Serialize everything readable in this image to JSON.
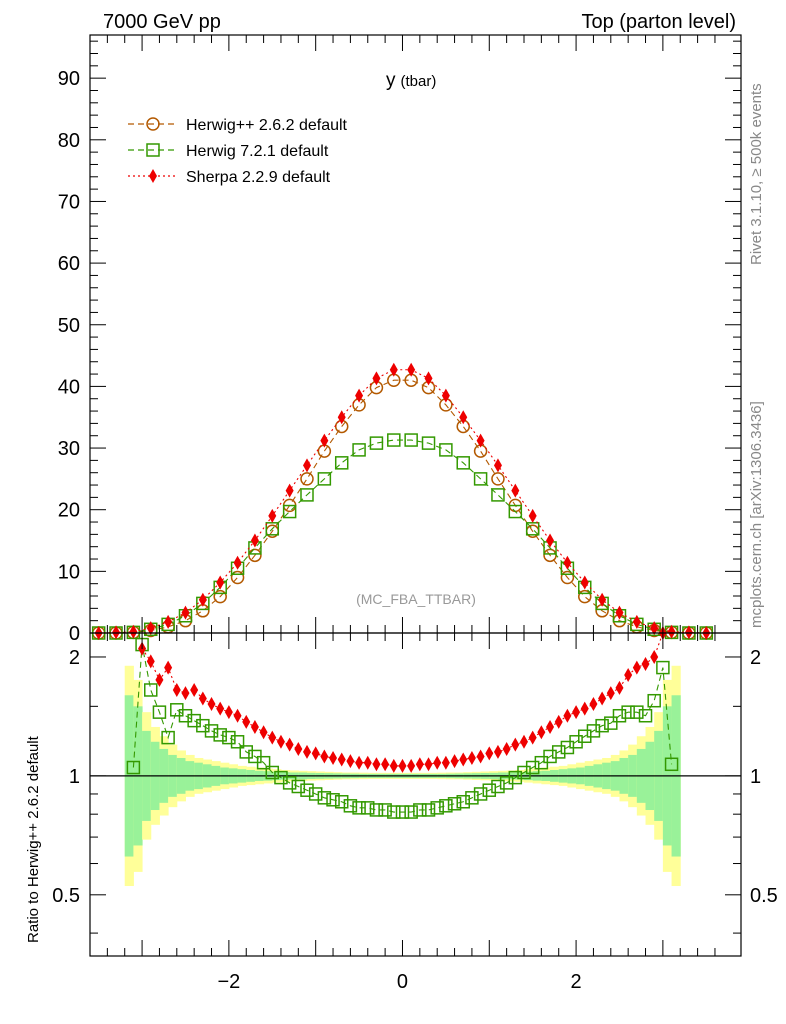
{
  "header": {
    "left": "7000 GeV pp",
    "right": "Top (parton level)"
  },
  "side_labels": {
    "rivet": "Rivet 3.1.10, ≥ 500k events",
    "mcplots": "mcplots.cern.ch [arXiv:1306.3436]"
  },
  "plot_title_main": "y",
  "plot_title_sub": "(tbar)",
  "analysis_label": "(MC_FBA_TTBAR)",
  "ratio_ylabel": "Ratio to Herwig++ 2.6.2 default",
  "colors": {
    "herwigpp": "#b35900",
    "herwig7": "#339900",
    "sherpa": "#ee0000",
    "band_inner": "#99f299",
    "band_outer": "#ffff99"
  },
  "chart_data": [
    {
      "type": "line",
      "panel": "main",
      "xlim": [
        -3.6,
        3.9
      ],
      "ylim": [
        0,
        97
      ],
      "yticks": [
        0,
        10,
        20,
        30,
        40,
        50,
        60,
        70,
        80,
        90
      ],
      "grid": false,
      "legend_position": "top-left",
      "series": [
        {
          "name": "Herwig++ 2.6.2 default",
          "marker": "open-circle",
          "line": "dashed",
          "x": [
            -3.5,
            -3.3,
            -3.1,
            -2.9,
            -2.7,
            -2.5,
            -2.3,
            -2.1,
            -1.9,
            -1.7,
            -1.5,
            -1.3,
            -1.1,
            -0.9,
            -0.7,
            -0.5,
            -0.3,
            -0.1,
            0.1,
            0.3,
            0.5,
            0.7,
            0.9,
            1.1,
            1.3,
            1.5,
            1.7,
            1.9,
            2.1,
            2.3,
            2.5,
            2.7,
            2.9,
            3.1,
            3.3,
            3.5
          ],
          "y": [
            0,
            0,
            0.1,
            0.4,
            1.0,
            2.0,
            3.6,
            5.9,
            9.0,
            12.6,
            16.5,
            20.7,
            25.0,
            29.5,
            33.5,
            37.0,
            39.8,
            41.0,
            41.0,
            39.8,
            37.0,
            33.5,
            29.5,
            25.0,
            20.7,
            16.5,
            12.6,
            9.0,
            5.9,
            3.6,
            2.0,
            1.0,
            0.4,
            0.1,
            0,
            0
          ]
        },
        {
          "name": "Herwig 7.2.1 default",
          "marker": "open-square",
          "line": "dashed",
          "x": [
            -3.5,
            -3.3,
            -3.1,
            -2.9,
            -2.7,
            -2.5,
            -2.3,
            -2.1,
            -1.9,
            -1.7,
            -1.5,
            -1.3,
            -1.1,
            -0.9,
            -0.7,
            -0.5,
            -0.3,
            -0.1,
            0.1,
            0.3,
            0.5,
            0.7,
            0.9,
            1.1,
            1.3,
            1.5,
            1.7,
            1.9,
            2.1,
            2.3,
            2.5,
            2.7,
            2.9,
            3.1,
            3.3,
            3.5
          ],
          "y": [
            0,
            0,
            0.1,
            0.6,
            1.4,
            2.8,
            4.8,
            7.4,
            10.5,
            13.8,
            16.9,
            19.7,
            22.4,
            25.0,
            27.6,
            29.7,
            30.8,
            31.3,
            31.3,
            30.8,
            29.7,
            27.6,
            25.0,
            22.4,
            19.7,
            16.9,
            13.8,
            10.5,
            7.4,
            4.8,
            2.8,
            1.4,
            0.6,
            0.1,
            0,
            0
          ]
        },
        {
          "name": "Sherpa 2.2.9 default",
          "marker": "filled-diamond",
          "line": "dotted",
          "x": [
            -3.5,
            -3.3,
            -3.1,
            -2.9,
            -2.7,
            -2.5,
            -2.3,
            -2.1,
            -1.9,
            -1.7,
            -1.5,
            -1.3,
            -1.1,
            -0.9,
            -0.7,
            -0.5,
            -0.3,
            -0.1,
            0.1,
            0.3,
            0.5,
            0.7,
            0.9,
            1.1,
            1.3,
            1.5,
            1.7,
            1.9,
            2.1,
            2.3,
            2.5,
            2.7,
            2.9,
            3.1,
            3.3,
            3.5
          ],
          "y": [
            0,
            0.1,
            0.2,
            0.8,
            1.8,
            3.3,
            5.4,
            8.2,
            11.4,
            15.0,
            19.0,
            23.1,
            27.2,
            31.2,
            35.0,
            38.5,
            41.3,
            42.7,
            42.7,
            41.3,
            38.5,
            35.0,
            31.2,
            27.2,
            23.1,
            19.0,
            15.0,
            11.4,
            8.2,
            5.4,
            3.3,
            1.8,
            0.8,
            0.2,
            0.1,
            0
          ]
        }
      ]
    },
    {
      "type": "line",
      "panel": "ratio",
      "xlim": [
        -3.6,
        3.9
      ],
      "ylim": [
        0.35,
        2.3
      ],
      "ylog": true,
      "yticks": [
        0.5,
        1,
        2
      ],
      "xticks": [
        -2,
        0,
        2
      ],
      "series": [
        {
          "name": "Herwig 7.2.1 default",
          "x": [
            -3.1,
            -3.0,
            -2.9,
            -2.8,
            -2.7,
            -2.6,
            -2.5,
            -2.4,
            -2.3,
            -2.2,
            -2.1,
            -2.0,
            -1.9,
            -1.8,
            -1.7,
            -1.6,
            -1.5,
            -1.4,
            -1.3,
            -1.2,
            -1.1,
            -1.0,
            -0.9,
            -0.8,
            -0.7,
            -0.6,
            -0.5,
            -0.4,
            -0.3,
            -0.2,
            -0.1,
            0.0,
            0.1,
            0.2,
            0.3,
            0.4,
            0.5,
            0.6,
            0.7,
            0.8,
            0.9,
            1.0,
            1.1,
            1.2,
            1.3,
            1.4,
            1.5,
            1.6,
            1.7,
            1.8,
            1.9,
            2.0,
            2.1,
            2.2,
            2.3,
            2.4,
            2.5,
            2.6,
            2.7,
            2.8,
            2.9,
            3.0,
            3.1
          ],
          "y": [
            1.05,
            2.15,
            1.65,
            1.45,
            1.25,
            1.47,
            1.42,
            1.38,
            1.34,
            1.3,
            1.27,
            1.25,
            1.22,
            1.15,
            1.12,
            1.08,
            1.02,
            0.99,
            0.96,
            0.94,
            0.92,
            0.9,
            0.88,
            0.87,
            0.86,
            0.84,
            0.83,
            0.83,
            0.82,
            0.82,
            0.81,
            0.81,
            0.81,
            0.82,
            0.82,
            0.83,
            0.84,
            0.85,
            0.86,
            0.88,
            0.9,
            0.92,
            0.94,
            0.96,
            0.99,
            1.02,
            1.05,
            1.08,
            1.12,
            1.15,
            1.18,
            1.22,
            1.26,
            1.3,
            1.34,
            1.36,
            1.42,
            1.45,
            1.45,
            1.42,
            1.55,
            1.88,
            1.07
          ]
        },
        {
          "name": "Sherpa 2.2.9 default",
          "x": [
            -3.0,
            -2.9,
            -2.8,
            -2.7,
            -2.6,
            -2.5,
            -2.4,
            -2.3,
            -2.2,
            -2.1,
            -2.0,
            -1.9,
            -1.8,
            -1.7,
            -1.6,
            -1.5,
            -1.4,
            -1.3,
            -1.2,
            -1.1,
            -1.0,
            -0.9,
            -0.8,
            -0.7,
            -0.6,
            -0.5,
            -0.4,
            -0.3,
            -0.2,
            -0.1,
            0.0,
            0.1,
            0.2,
            0.3,
            0.4,
            0.5,
            0.6,
            0.7,
            0.8,
            0.9,
            1.0,
            1.1,
            1.2,
            1.3,
            1.4,
            1.5,
            1.6,
            1.7,
            1.8,
            1.9,
            2.0,
            2.1,
            2.2,
            2.3,
            2.4,
            2.5,
            2.6,
            2.7,
            2.8,
            2.9,
            3.0
          ],
          "y": [
            2.1,
            1.95,
            1.75,
            1.88,
            1.65,
            1.62,
            1.65,
            1.57,
            1.52,
            1.48,
            1.45,
            1.42,
            1.37,
            1.33,
            1.29,
            1.25,
            1.22,
            1.2,
            1.17,
            1.15,
            1.14,
            1.12,
            1.11,
            1.1,
            1.09,
            1.08,
            1.08,
            1.07,
            1.07,
            1.06,
            1.06,
            1.06,
            1.07,
            1.07,
            1.08,
            1.08,
            1.09,
            1.1,
            1.11,
            1.12,
            1.14,
            1.15,
            1.17,
            1.2,
            1.22,
            1.25,
            1.29,
            1.33,
            1.37,
            1.42,
            1.45,
            1.48,
            1.52,
            1.57,
            1.62,
            1.67,
            1.8,
            1.88,
            1.92,
            2.0,
            2.3
          ]
        }
      ],
      "bands": {
        "x": [
          -3.15,
          -3.05,
          -2.95,
          -2.85,
          -2.75,
          -2.65,
          -2.55,
          -2.45,
          -2.35,
          -2.25,
          -2.15,
          -2.05,
          -1.95,
          -1.85,
          -1.75,
          -1.65,
          -1.55,
          -1.45,
          -1.35,
          -1.25,
          -1.15,
          -1.05,
          -0.95,
          -0.85,
          -0.75,
          -0.65,
          -0.55,
          -0.45,
          -0.35,
          -0.25,
          -0.15,
          -0.05,
          0.05,
          0.15,
          0.25,
          0.35,
          0.45,
          0.55,
          0.65,
          0.75,
          0.85,
          0.95,
          1.05,
          1.15,
          1.25,
          1.35,
          1.45,
          1.55,
          1.65,
          1.75,
          1.85,
          1.95,
          2.05,
          2.15,
          2.25,
          2.35,
          2.45,
          2.55,
          2.65,
          2.75,
          2.85,
          2.95,
          3.05,
          3.15
        ],
        "inner_rel": [
          0.6,
          0.5,
          0.3,
          0.22,
          0.17,
          0.13,
          0.11,
          0.09,
          0.08,
          0.07,
          0.06,
          0.05,
          0.045,
          0.04,
          0.035,
          0.03,
          0.028,
          0.025,
          0.022,
          0.02,
          0.02,
          0.018,
          0.017,
          0.016,
          0.015,
          0.014,
          0.013,
          0.012,
          0.012,
          0.012,
          0.012,
          0.012,
          0.012,
          0.012,
          0.012,
          0.012,
          0.012,
          0.013,
          0.014,
          0.015,
          0.016,
          0.017,
          0.018,
          0.02,
          0.02,
          0.022,
          0.025,
          0.028,
          0.03,
          0.035,
          0.04,
          0.045,
          0.05,
          0.06,
          0.07,
          0.08,
          0.09,
          0.11,
          0.13,
          0.17,
          0.22,
          0.3,
          0.5,
          0.6
        ],
        "outer_rel": [
          0.9,
          0.75,
          0.45,
          0.33,
          0.26,
          0.2,
          0.16,
          0.13,
          0.11,
          0.1,
          0.09,
          0.08,
          0.07,
          0.06,
          0.055,
          0.05,
          0.045,
          0.04,
          0.035,
          0.032,
          0.03,
          0.028,
          0.026,
          0.024,
          0.022,
          0.02,
          0.02,
          0.019,
          0.018,
          0.018,
          0.018,
          0.018,
          0.018,
          0.018,
          0.018,
          0.018,
          0.019,
          0.02,
          0.02,
          0.022,
          0.024,
          0.026,
          0.028,
          0.03,
          0.032,
          0.035,
          0.04,
          0.045,
          0.05,
          0.055,
          0.06,
          0.07,
          0.08,
          0.09,
          0.1,
          0.11,
          0.13,
          0.16,
          0.2,
          0.26,
          0.33,
          0.45,
          0.75,
          0.9
        ]
      }
    }
  ]
}
